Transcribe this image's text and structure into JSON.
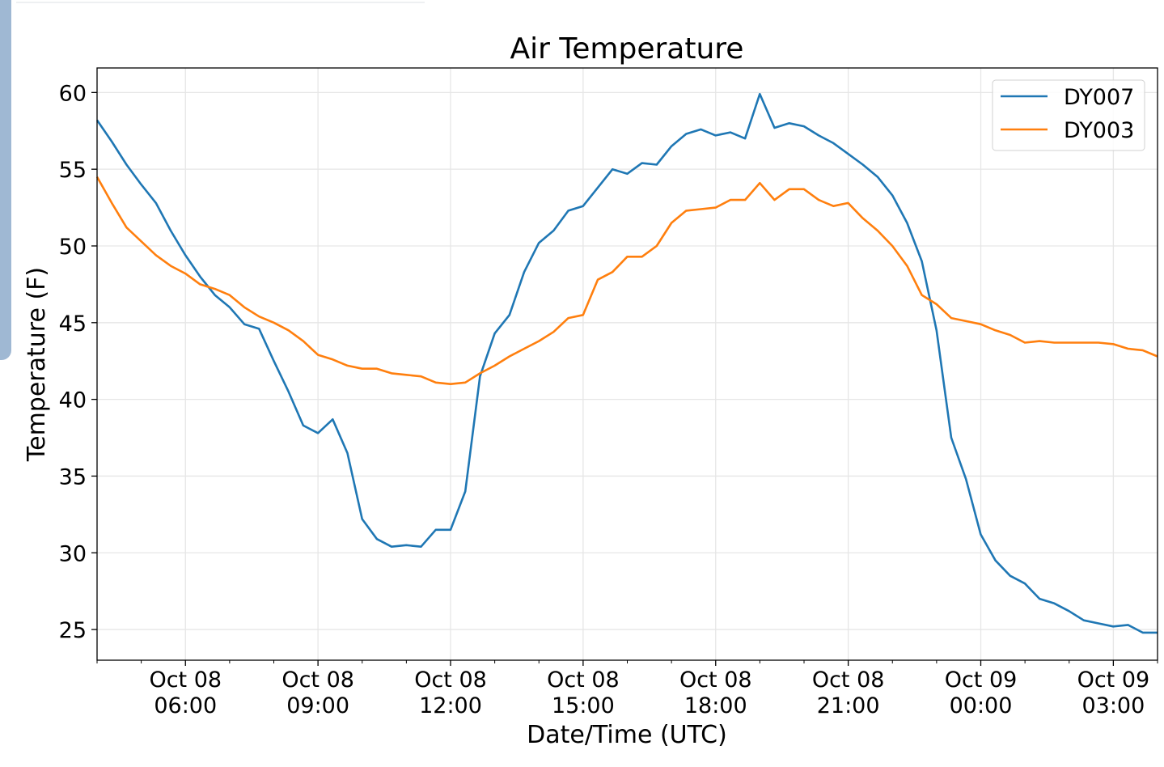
{
  "chart_data": {
    "type": "line",
    "title": "Air Temperature",
    "xlabel": "Date/Time (UTC)",
    "ylabel": "Temperature (F)",
    "x_unit": "hours since Oct 08 04:00 UTC",
    "xlim": [
      0,
      24
    ],
    "ylim": [
      23,
      61.6
    ],
    "grid": true,
    "legend_position": "top-right",
    "yticks": [
      25,
      30,
      35,
      40,
      45,
      50,
      55,
      60
    ],
    "xticks": [
      {
        "hour": 2,
        "line1": "Oct 08",
        "line2": "06:00"
      },
      {
        "hour": 5,
        "line1": "Oct 08",
        "line2": "09:00"
      },
      {
        "hour": 8,
        "line1": "Oct 08",
        "line2": "12:00"
      },
      {
        "hour": 11,
        "line1": "Oct 08",
        "line2": "15:00"
      },
      {
        "hour": 14,
        "line1": "Oct 08",
        "line2": "18:00"
      },
      {
        "hour": 17,
        "line1": "Oct 08",
        "line2": "21:00"
      },
      {
        "hour": 20,
        "line1": "Oct 09",
        "line2": "00:00"
      },
      {
        "hour": 23,
        "line1": "Oct 09",
        "line2": "03:00"
      }
    ],
    "x_step_hours": 0.3333,
    "series": [
      {
        "name": "DY007",
        "color": "#1f77b4",
        "values": [
          58.2,
          56.8,
          55.3,
          54.0,
          52.8,
          51.0,
          49.4,
          48.0,
          46.8,
          46.0,
          44.9,
          44.6,
          42.5,
          40.5,
          38.3,
          37.8,
          38.7,
          36.5,
          32.2,
          30.9,
          30.4,
          30.5,
          30.4,
          31.5,
          31.5,
          34.0,
          41.5,
          44.3,
          45.5,
          48.3,
          50.2,
          51.0,
          52.3,
          52.6,
          53.8,
          55.0,
          54.7,
          55.4,
          55.3,
          56.5,
          57.3,
          57.6,
          57.2,
          57.4,
          57.0,
          59.9,
          57.7,
          58.0,
          57.8,
          57.2,
          56.7,
          56.0,
          55.3,
          54.5,
          53.3,
          51.5,
          49.0,
          44.5,
          37.5,
          34.8,
          31.2,
          29.5,
          28.5,
          28.0,
          27.0,
          26.7,
          26.2,
          25.6,
          25.4,
          25.2,
          25.3,
          24.8,
          24.8
        ]
      },
      {
        "name": "DY003",
        "color": "#ff7f0e",
        "values": [
          54.5,
          52.8,
          51.2,
          50.3,
          49.4,
          48.7,
          48.2,
          47.5,
          47.2,
          46.8,
          46.0,
          45.4,
          45.0,
          44.5,
          43.8,
          42.9,
          42.6,
          42.2,
          42.0,
          42.0,
          41.7,
          41.6,
          41.5,
          41.1,
          41.0,
          41.1,
          41.7,
          42.2,
          42.8,
          43.3,
          43.8,
          44.4,
          45.3,
          45.5,
          47.8,
          48.3,
          49.3,
          49.3,
          50.0,
          51.5,
          52.3,
          52.4,
          52.5,
          53.0,
          53.0,
          54.1,
          53.0,
          53.7,
          53.7,
          53.0,
          52.6,
          52.8,
          51.8,
          51.0,
          50.0,
          48.7,
          46.8,
          46.2,
          45.3,
          45.1,
          44.9,
          44.5,
          44.2,
          43.7,
          43.8,
          43.7,
          43.7,
          43.7,
          43.7,
          43.6,
          43.3,
          43.2,
          42.8
        ]
      }
    ]
  }
}
